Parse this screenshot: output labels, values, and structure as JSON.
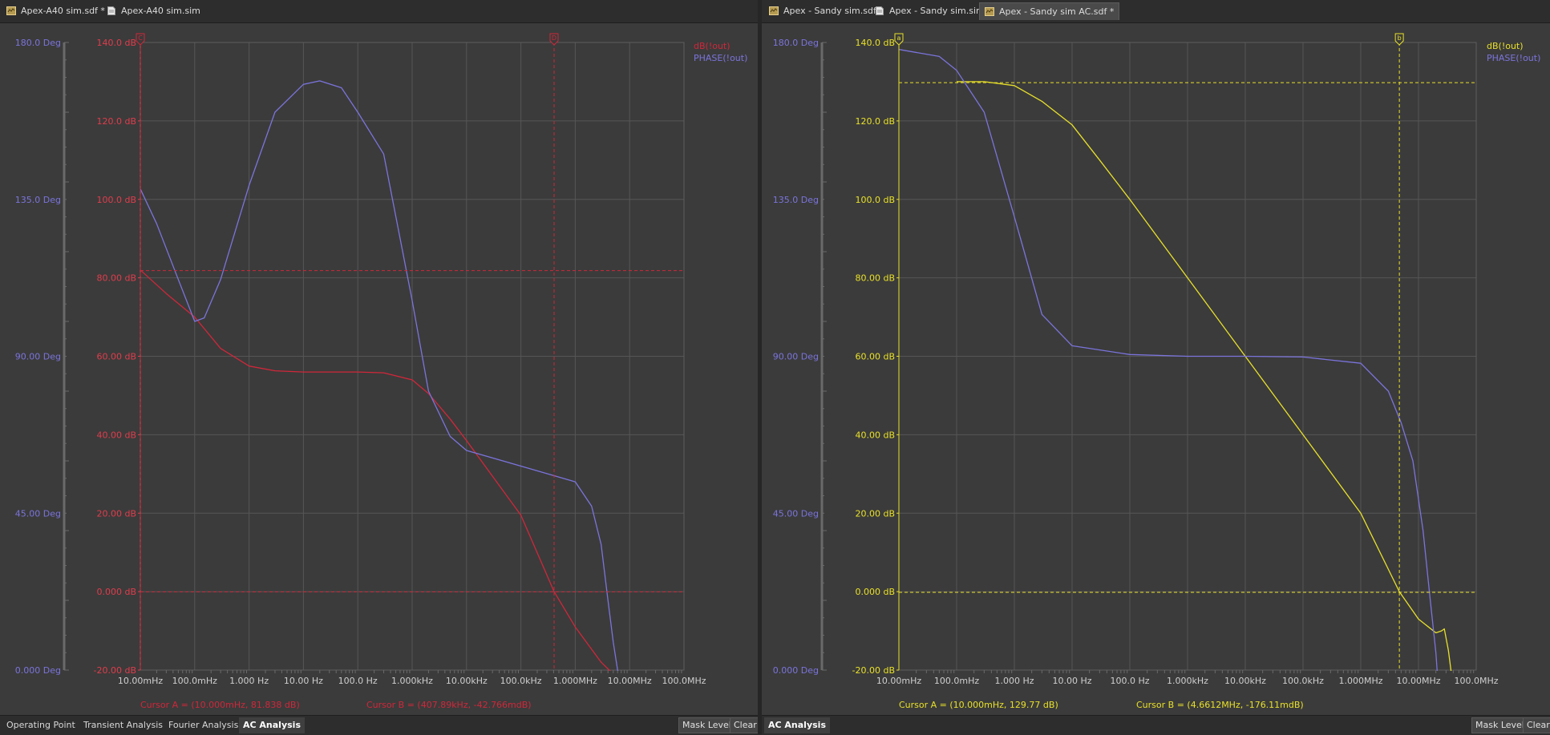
{
  "colors": {
    "left_mag": "#d0273a",
    "left_axis": "#e03c4c",
    "phase": "#7b74dc",
    "right_mag": "#e8e02a",
    "grid": "#565656",
    "plot_bg": "#3b3b3b"
  },
  "icons": {
    "schematic_doc": "schematic-doc-icon",
    "sim_doc": "sim-doc-icon",
    "cursor_marker": "cursor-flag-icon"
  },
  "left": {
    "tabs": [
      {
        "label": "Apex-A40 sim.sdf *",
        "icon": "schematic-doc-icon",
        "active": false
      },
      {
        "label": "Apex-A40 sim.sim",
        "icon": "sim-doc-icon",
        "active": false
      }
    ],
    "chart": {
      "phase_ticks": [
        "180.0 Deg",
        "135.0 Deg",
        "90.00 Deg",
        "45.00 Deg",
        "0.000 Deg"
      ],
      "db_ticks": [
        "140.0 dB",
        "120.0 dB",
        "100.0 dB",
        "80.00 dB",
        "60.00 dB",
        "40.00 dB",
        "20.00 dB",
        "0.000 dB",
        "-20.00 dB"
      ],
      "x_ticks": [
        "10.00mHz",
        "100.0mHz",
        "1.000 Hz",
        "10.00 Hz",
        "100.0 Hz",
        "1.000kHz",
        "10.00kHz",
        "100.0kHz",
        "1.000MHz",
        "10.00MHz",
        "100.0MHz"
      ],
      "legend": [
        "dB(!out)",
        "PHASE(!out)"
      ],
      "cursor_a_text": "Cursor A = (10.000mHz, 81.838 dB)",
      "cursor_b_text": "Cursor B = (407.89kHz, -42.766mdB)",
      "cursor_a_flag": "C",
      "cursor_b_flag": "D"
    },
    "sim_tabs": [
      {
        "label": "Operating Point",
        "active": false
      },
      {
        "label": "Transient Analysis",
        "active": false
      },
      {
        "label": "Fourier Analysis",
        "active": false
      },
      {
        "label": "AC Analysis",
        "active": true
      }
    ],
    "buttons": {
      "mask_level": "Mask Level",
      "clear": "Clear"
    }
  },
  "right": {
    "tabs": [
      {
        "label": "Apex - Sandy sim.sdf",
        "icon": "schematic-doc-icon",
        "active": false
      },
      {
        "label": "Apex - Sandy sim.sim",
        "icon": "sim-doc-icon",
        "active": false
      },
      {
        "label": "Apex - Sandy sim AC.sdf *",
        "icon": "schematic-doc-icon",
        "active": true
      }
    ],
    "chart": {
      "phase_ticks": [
        "180.0 Deg",
        "135.0 Deg",
        "90.00 Deg",
        "45.00 Deg",
        "0.000 Deg"
      ],
      "db_ticks": [
        "140.0 dB",
        "120.0 dB",
        "100.0 dB",
        "80.00 dB",
        "60.00 dB",
        "40.00 dB",
        "20.00 dB",
        "0.000 dB",
        "-20.00 dB"
      ],
      "x_ticks": [
        "10.00mHz",
        "100.0mHz",
        "1.000 Hz",
        "10.00 Hz",
        "100.0 Hz",
        "1.000kHz",
        "10.00kHz",
        "100.0kHz",
        "1.000MHz",
        "10.00MHz",
        "100.0MHz"
      ],
      "legend": [
        "dB(!out)",
        "PHASE(!out)"
      ],
      "cursor_a_text": "Cursor A = (10.000mHz, 129.77 dB)",
      "cursor_b_text": "Cursor B = (4.6612MHz, -176.11mdB)",
      "cursor_a_flag": "a",
      "cursor_b_flag": "b"
    },
    "sim_tabs": [
      {
        "label": "AC Analysis",
        "active": true
      }
    ],
    "buttons": {
      "mask_level": "Mask Level",
      "clear": "Clear"
    }
  },
  "chart_data": [
    {
      "type": "line",
      "x_scale": "log",
      "xlim": [
        0.01,
        100000000
      ],
      "ylim": [
        -20,
        140
      ],
      "y2lim": [
        0,
        180
      ],
      "grid": true,
      "legend_position": "top-right",
      "series": [
        {
          "name": "dB(!out)",
          "axis": "y",
          "points": [
            [
              0.01,
              82
            ],
            [
              0.03,
              76
            ],
            [
              0.1,
              70
            ],
            [
              0.3,
              62
            ],
            [
              1,
              57.5
            ],
            [
              3,
              56.3
            ],
            [
              10,
              56
            ],
            [
              30,
              56
            ],
            [
              100,
              56
            ],
            [
              300,
              55.8
            ],
            [
              1000,
              54
            ],
            [
              2000,
              50.5
            ],
            [
              5000,
              44
            ],
            [
              10000,
              38.5
            ],
            [
              100000,
              19.5
            ],
            [
              407890,
              0
            ],
            [
              1000000,
              -9
            ],
            [
              3000000,
              -18
            ],
            [
              5000000,
              -21
            ]
          ]
        },
        {
          "name": "PHASE(!out)",
          "axis": "y2",
          "points": [
            [
              0.01,
              138
            ],
            [
              0.02,
              128
            ],
            [
              0.05,
              112
            ],
            [
              0.1,
              100
            ],
            [
              0.15,
              101
            ],
            [
              0.3,
              112
            ],
            [
              1,
              139
            ],
            [
              3,
              160
            ],
            [
              10,
              168
            ],
            [
              20,
              169
            ],
            [
              50,
              167
            ],
            [
              100,
              160
            ],
            [
              300,
              148
            ],
            [
              1000,
              106
            ],
            [
              2000,
              80
            ],
            [
              5000,
              67
            ],
            [
              10000,
              63
            ],
            [
              100000,
              58.5
            ],
            [
              1000000,
              54
            ],
            [
              2000000,
              47
            ],
            [
              3000000,
              36
            ],
            [
              4000000,
              20
            ],
            [
              5000000,
              8
            ],
            [
              6000000,
              0
            ],
            [
              8000000,
              -5
            ]
          ]
        }
      ],
      "cursors": [
        {
          "name": "Cursor A",
          "x": 0.01,
          "y": 81.838
        },
        {
          "name": "Cursor B",
          "x": 407890,
          "y": -0.042766
        }
      ]
    },
    {
      "type": "line",
      "x_scale": "log",
      "xlim": [
        0.01,
        100000000
      ],
      "ylim": [
        -20,
        140
      ],
      "y2lim": [
        0,
        180
      ],
      "grid": true,
      "legend_position": "top-right",
      "series": [
        {
          "name": "dB(!out)",
          "axis": "y",
          "points": [
            [
              0.1,
              130
            ],
            [
              0.3,
              130
            ],
            [
              1,
              129
            ],
            [
              3,
              125
            ],
            [
              10,
              119
            ],
            [
              30,
              110
            ],
            [
              100,
              100
            ],
            [
              1000,
              80
            ],
            [
              10000,
              60
            ],
            [
              100000,
              40
            ],
            [
              1000000,
              20
            ],
            [
              4661200,
              0
            ],
            [
              10000000,
              -7
            ],
            [
              20000000,
              -10.5
            ],
            [
              25000000,
              -10
            ],
            [
              28000000,
              -9.5
            ],
            [
              33000000,
              -15
            ],
            [
              38000000,
              -22
            ]
          ]
        },
        {
          "name": "PHASE(!out)",
          "axis": "y2",
          "points": [
            [
              0.01,
              178
            ],
            [
              0.05,
              176
            ],
            [
              0.1,
              172
            ],
            [
              0.3,
              160
            ],
            [
              1,
              130
            ],
            [
              3,
              102
            ],
            [
              10,
              93
            ],
            [
              100,
              90.5
            ],
            [
              1000,
              90
            ],
            [
              10000,
              90
            ],
            [
              100000,
              89.8
            ],
            [
              1000000,
              88
            ],
            [
              3000000,
              80
            ],
            [
              5000000,
              71
            ],
            [
              8000000,
              60
            ],
            [
              12000000,
              40
            ],
            [
              16000000,
              20
            ],
            [
              20000000,
              5
            ],
            [
              22000000,
              -5
            ]
          ]
        }
      ],
      "cursors": [
        {
          "name": "Cursor A",
          "x": 0.01,
          "y": 129.77
        },
        {
          "name": "Cursor B",
          "x": 4661200,
          "y": -0.17611
        }
      ]
    }
  ]
}
